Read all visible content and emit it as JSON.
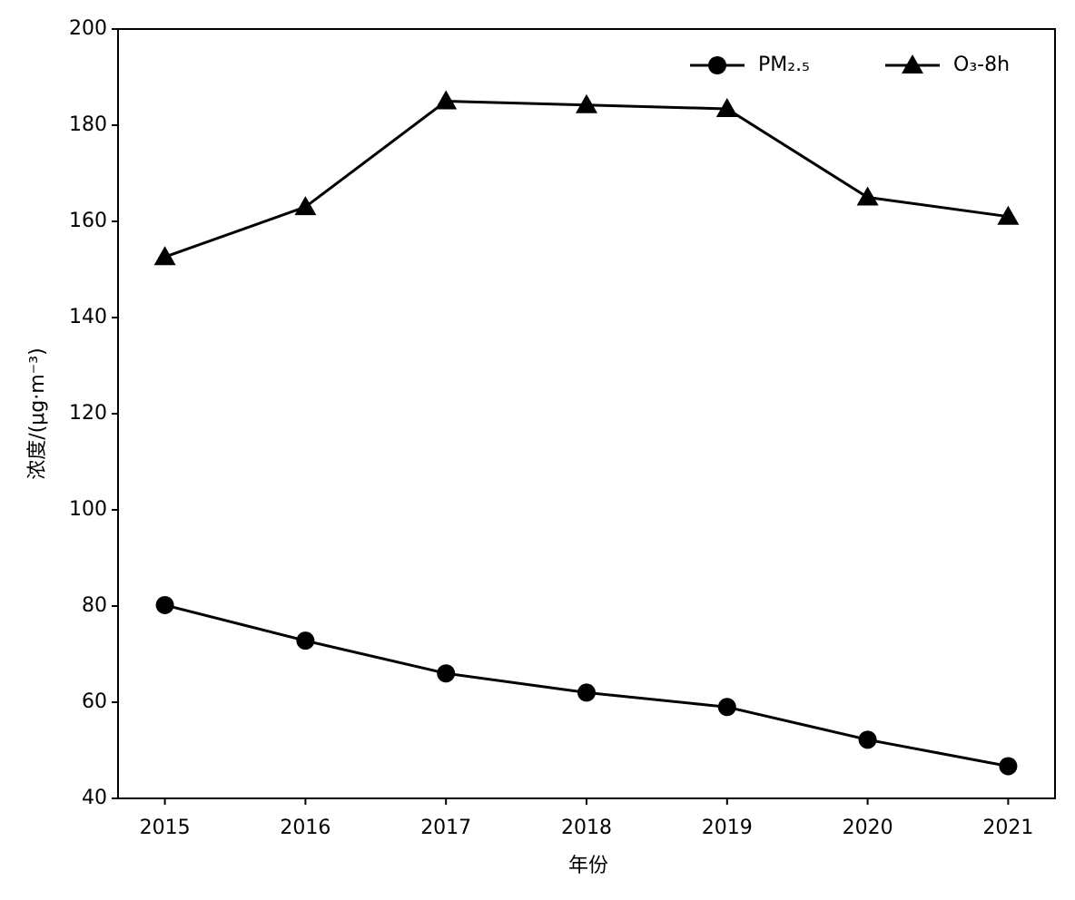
{
  "chart_data": {
    "type": "line",
    "x_label": "年份",
    "y_label": "浓度/(μg·m⁻³)",
    "categories": [
      "2015",
      "2016",
      "2017",
      "2018",
      "2019",
      "2020",
      "2021"
    ],
    "series": [
      {
        "name": "PM₂.₅",
        "color": "#000000",
        "marker": "circle",
        "values": [
          80.2,
          72.8,
          66,
          62,
          59,
          52.2,
          46.7
        ]
      },
      {
        "name": "O₃-8h",
        "color": "#000000",
        "marker": "triangle",
        "values": [
          152.6,
          163,
          185,
          184.2,
          183.4,
          165,
          161
        ]
      }
    ],
    "ylim": [
      40,
      200
    ],
    "yticks": [
      40,
      60,
      80,
      100,
      120,
      140,
      160,
      180,
      200
    ],
    "grid": false,
    "legend": "upper right"
  }
}
